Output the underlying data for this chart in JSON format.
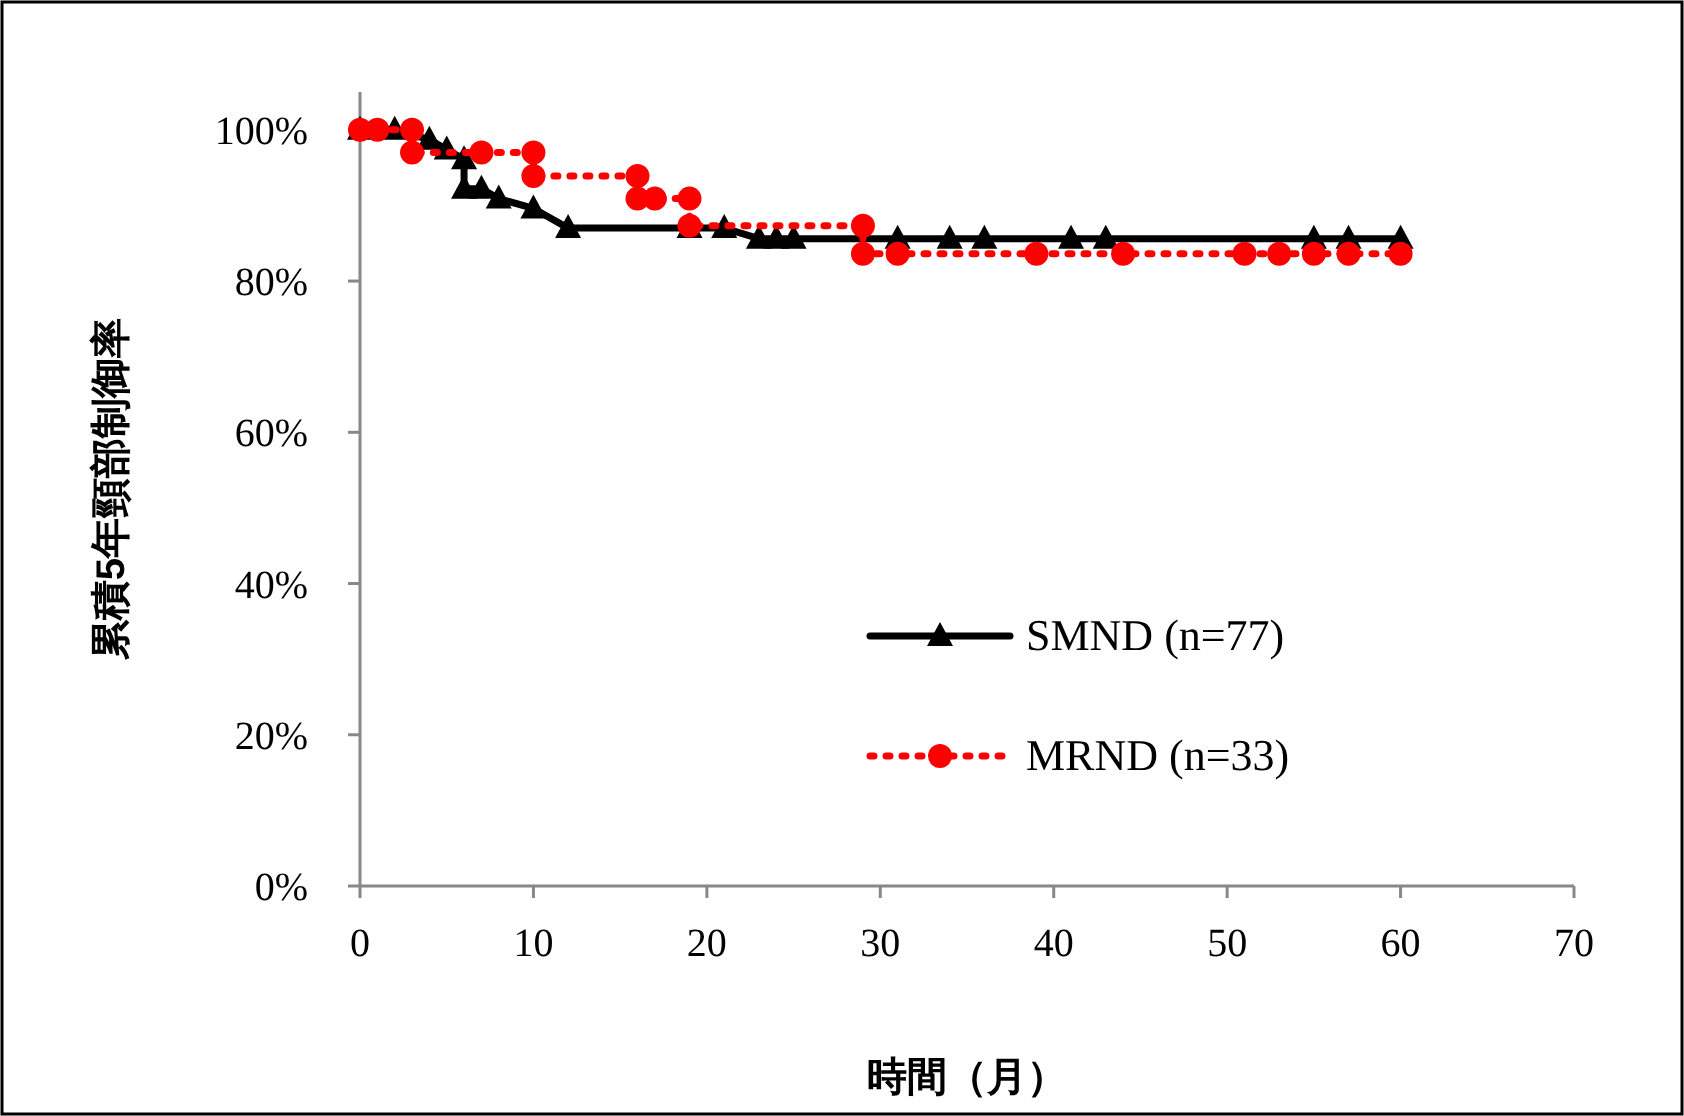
{
  "chart_data": {
    "type": "line",
    "xlabel": "時間（月）",
    "ylabel": "累積5年頸部制御率",
    "xlim": [
      0,
      70
    ],
    "xticks": [
      0,
      10,
      20,
      30,
      40,
      50,
      60,
      70
    ],
    "ylim": [
      0,
      105
    ],
    "yticks": [
      {
        "value": 0,
        "label": "0%"
      },
      {
        "value": 20,
        "label": "20%"
      },
      {
        "value": 40,
        "label": "40%"
      },
      {
        "value": 60,
        "label": "60%"
      },
      {
        "value": 80,
        "label": "80%"
      },
      {
        "value": 100,
        "label": "100%"
      }
    ],
    "grid": false,
    "legend": "right",
    "series": [
      {
        "name": "SMND (n=77)",
        "color": "#000000",
        "marker": "triangle",
        "line_style": "solid",
        "x": [
          0,
          2,
          4,
          5,
          6,
          6,
          7,
          8,
          10,
          12,
          19,
          21,
          23,
          24,
          25,
          31,
          34,
          36,
          41,
          43,
          55,
          57,
          60
        ],
        "values": [
          100,
          100,
          98.7,
          97.4,
          96.1,
          92.2,
          92.2,
          90.9,
          89.6,
          87.0,
          87.0,
          87.0,
          85.6,
          85.6,
          85.6,
          85.6,
          85.6,
          85.6,
          85.6,
          85.6,
          85.6,
          85.6,
          85.6
        ]
      },
      {
        "name": "MRND (n=33)",
        "color": "#ff0000",
        "marker": "circle",
        "line_style": "dotted",
        "x": [
          0,
          1,
          3,
          3,
          7,
          10,
          10,
          16,
          16,
          17,
          19,
          19,
          29,
          29,
          31,
          39,
          44,
          51,
          53,
          55,
          57,
          60
        ],
        "values": [
          100,
          100,
          100,
          97,
          97,
          97,
          93.9,
          93.9,
          90.9,
          90.9,
          90.9,
          87.3,
          87.3,
          83.6,
          83.6,
          83.6,
          83.6,
          83.6,
          83.6,
          83.6,
          83.6,
          83.6
        ]
      }
    ]
  }
}
